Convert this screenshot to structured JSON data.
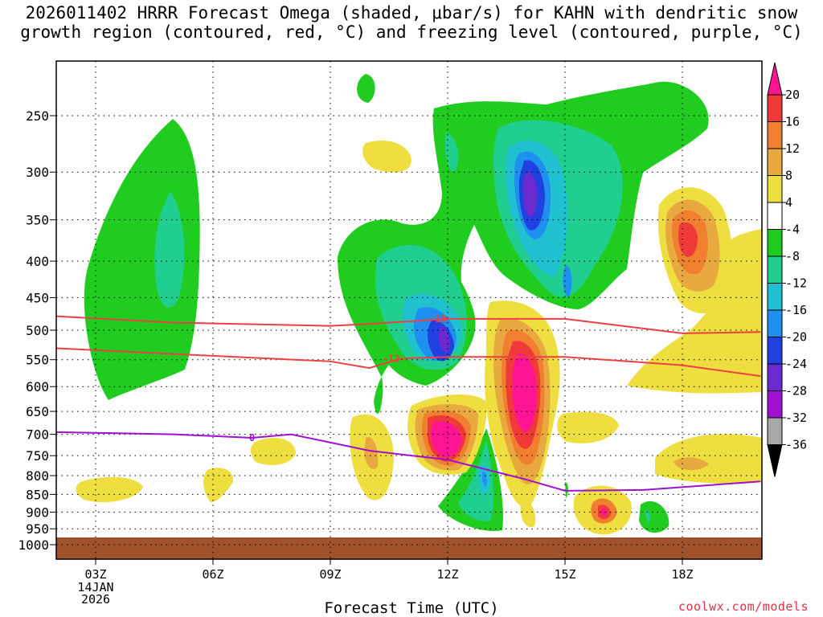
{
  "title_line1": "2026011402 HRRR Forecast Omega (shaded, μbar/s) for KAHN with dendritic snow",
  "title_line2": "growth region (contoured, red, °C) and freezing level (contoured, purple, °C)",
  "credit": "coolwx.com/models",
  "chart_data": {
    "type": "heatmap",
    "xlabel": "Forecast Time (UTC)",
    "x_ticks": [
      "03Z",
      "06Z",
      "09Z",
      "12Z",
      "15Z",
      "18Z"
    ],
    "x_date": [
      "14JAN",
      "2026"
    ],
    "ylabel": "",
    "y_ticks": [
      "250",
      "300",
      "350",
      "400",
      "450",
      "500",
      "550",
      "600",
      "650",
      "700",
      "750",
      "800",
      "850",
      "900",
      "950",
      "1000"
    ],
    "y_scale": "log",
    "ylim": [
      1000,
      200
    ],
    "x_range_hours": [
      2,
      20
    ],
    "grid": true,
    "colorbar": {
      "labels": [
        "20",
        "16",
        "12",
        "8",
        "4",
        "-4",
        "-8",
        "-12",
        "-16",
        "-20",
        "-24",
        "-28",
        "-32",
        "-36"
      ],
      "colors": [
        "#ff1493",
        "#f03a3a",
        "#f08030",
        "#e8aa40",
        "#eede40",
        "#ffffff",
        "#20cc20",
        "#20ce90",
        "#20c0d0",
        "#2090f0",
        "#2040e0",
        "#6a2ad0",
        "#a010d0",
        "#a8a8a8",
        "#000000"
      ]
    },
    "contours": [
      {
        "label": "-18",
        "color": "#ee4040",
        "x": [
          2,
          5,
          9,
          10,
          12,
          15,
          18,
          20
        ],
        "y": [
          478,
          488,
          493,
          490,
          482,
          482,
          505,
          503
        ]
      },
      {
        "label": "-12",
        "color": "#ee4040",
        "x": [
          2,
          5,
          9,
          10,
          10.8,
          12,
          15,
          18,
          20
        ],
        "y": [
          530,
          540,
          553,
          565,
          548,
          545,
          545,
          560,
          580
        ]
      },
      {
        "label": "0",
        "color": "#a010d0",
        "x": [
          2,
          5,
          7,
          8,
          10,
          12,
          14,
          15,
          17,
          20
        ],
        "y": [
          695,
          700,
          708,
          700,
          738,
          760,
          810,
          840,
          838,
          815
        ]
      }
    ]
  }
}
